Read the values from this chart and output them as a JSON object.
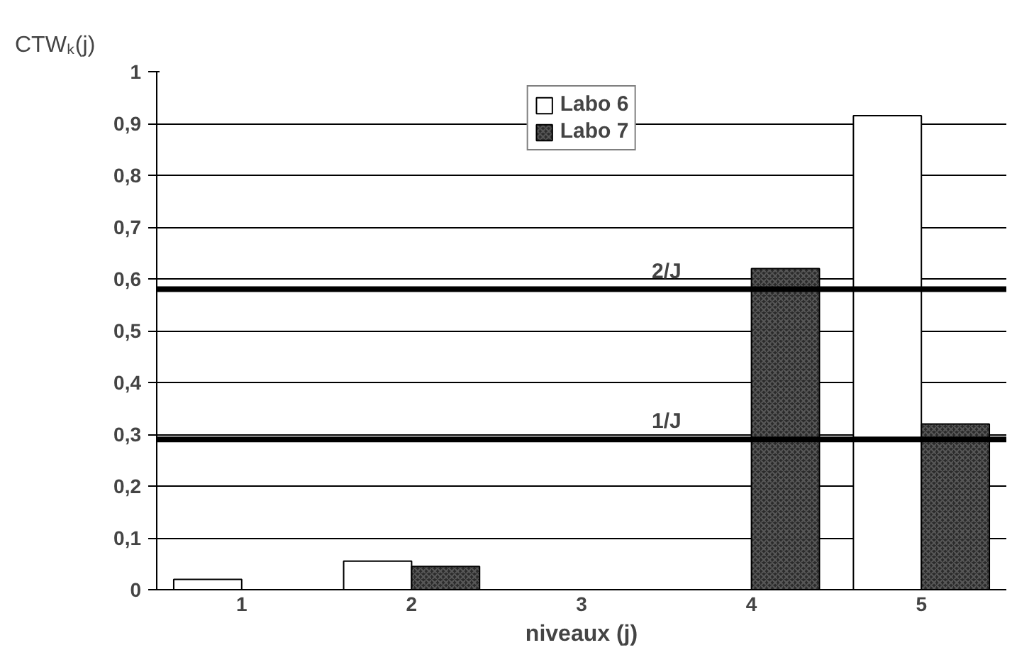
{
  "chart_data": {
    "type": "bar",
    "xlabel": "niveaux (j)",
    "ylabel": "CTWₖ(j)",
    "categories": [
      "1",
      "2",
      "3",
      "4",
      "5"
    ],
    "series": [
      {
        "name": "Labo 6",
        "color": "#ffffff",
        "values": [
          0.02,
          0.055,
          null,
          null,
          0.915
        ]
      },
      {
        "name": "Labo 7",
        "color": "#2b2b2b",
        "values": [
          null,
          0.045,
          null,
          0.62,
          0.32
        ]
      }
    ],
    "ylim": [
      0,
      1
    ],
    "yticks": [
      0,
      {
        "value": 0.1,
        "label": "0,1"
      },
      {
        "value": 0.2,
        "label": "0,2"
      },
      {
        "value": 0.3,
        "label": "0,3"
      },
      {
        "value": 0.4,
        "label": "0,4"
      },
      {
        "value": 0.5,
        "label": "0,5"
      },
      {
        "value": 0.6,
        "label": "0,6"
      },
      {
        "value": 0.7,
        "label": "0,7"
      },
      {
        "value": 0.8,
        "label": "0,8"
      },
      {
        "value": 0.9,
        "label": "0,9"
      },
      1
    ],
    "ref_lines": [
      {
        "axis": "y",
        "value": 0.58,
        "label": "2/J",
        "color": "#000000"
      },
      {
        "axis": "y",
        "value": 0.29,
        "label": "1/J",
        "color": "#000000"
      }
    ],
    "grid": "y",
    "legend": "top"
  }
}
